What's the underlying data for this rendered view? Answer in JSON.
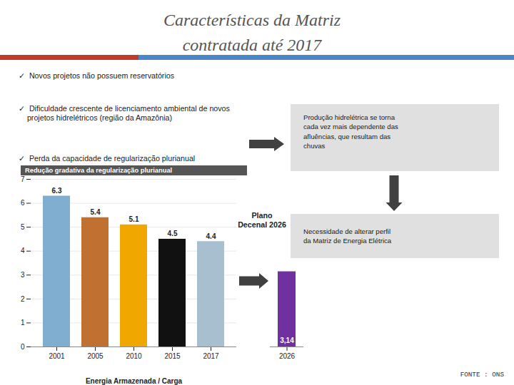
{
  "chart_data": [
    {
      "type": "bar",
      "title": "Características da Matriz\ncontratada até 2017",
      "categories": [
        "2001",
        "2005",
        "2010",
        "2015",
        "2017"
      ],
      "values": [
        6.3,
        5.4,
        5.1,
        4.5,
        4.4
      ],
      "colors": [
        "#7faed0",
        "#c07030",
        "#f0a800",
        "#111111",
        "#a8bfd0"
      ],
      "xlabel": "Energia Armazenada / Carga",
      "ylim": [
        0,
        7
      ],
      "yticks": [
        0,
        1,
        2,
        3,
        4,
        5,
        6,
        7
      ],
      "grid": true,
      "data_labels": true,
      "annotations": [
        "✓  Novos projetos não possuem reservatórios",
        "✓  Dificuldade crescente de licenciamento ambiental de novos\n    projetos hidrelétricos (região da Amazônia)",
        "✓  Perda da capacidade de regularização plurianual",
        "Redução gradativa da regularização plurianual",
        "Produção hidrelétrica se torna\ncada vez mais dependente das\nafluências, que resultam das\nchuvas",
        "Necessidade de alterar perfil\nda Matriz de Energia Elétrica",
        "FONTE : ONS"
      ]
    },
    {
      "type": "bar",
      "categories": [
        "2026"
      ],
      "values": [
        3.14
      ],
      "value_labels": [
        "3,14"
      ],
      "color": "#7030a0",
      "ylim": [
        0,
        7
      ],
      "tick_labels": "x",
      "data_labels": true,
      "annotations": [
        "Plano\nDecenal 2026"
      ]
    }
  ]
}
